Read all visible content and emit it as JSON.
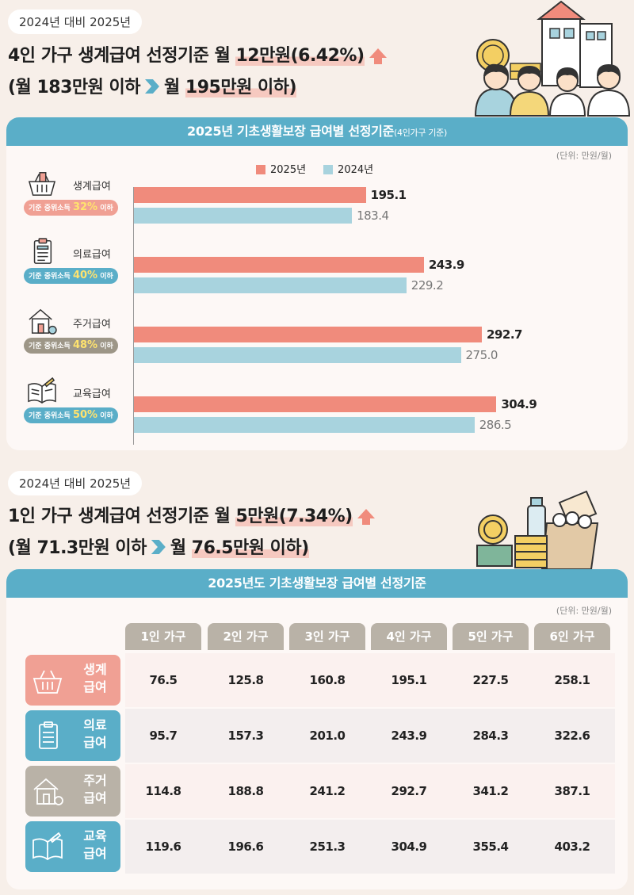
{
  "top": {
    "tag": "2024년 대비 2025년",
    "line1_pre": "4인 가구 생계급여 선정기준 월 ",
    "line1_hl": "12만원(6.42%)",
    "line2_a": "(월 183만원 이하",
    "line2_b": "월 ",
    "line2_hl": "195만원 이하)"
  },
  "chart_card": {
    "title": "2025년 기초생활보장 급여별 선정기준",
    "title_small": "(4인가구 기준)",
    "unit": "(단위: 만원/월)"
  },
  "categories": [
    {
      "name": "생계급여",
      "badge_pre": "기준 중위소득 ",
      "badge_pct": "32%",
      "badge_post": " 이하",
      "icon": "shopping-basket-icon",
      "color": "#f0a094"
    },
    {
      "name": "의료급여",
      "badge_pre": "기준 중위소득 ",
      "badge_pct": "40%",
      "badge_post": " 이하",
      "icon": "clipboard-icon",
      "color": "#5aaec8"
    },
    {
      "name": "주거급여",
      "badge_pre": "기준 중위소득 ",
      "badge_pct": "48%",
      "badge_post": " 이하",
      "icon": "house-icon",
      "color": "#9d9687"
    },
    {
      "name": "교육급여",
      "badge_pre": "기준 중위소득 ",
      "badge_pct": "50%",
      "badge_post": " 이하",
      "icon": "book-icon",
      "color": "#5aaec8"
    }
  ],
  "chart_data": {
    "type": "bar",
    "orientation": "horizontal",
    "categories": [
      "생계급여",
      "의료급여",
      "주거급여",
      "교육급여"
    ],
    "series": [
      {
        "name": "2025년",
        "values": [
          195.1,
          243.9,
          292.7,
          304.9
        ],
        "color": "#f08b7c"
      },
      {
        "name": "2024년",
        "values": [
          183.4,
          229.2,
          275.0,
          286.5
        ],
        "color": "#a8d3de"
      }
    ],
    "value_labels": [
      [
        "195.1",
        "243.9",
        "292.7",
        "304.9"
      ],
      [
        "183.4",
        "229.2",
        "275.0",
        "286.5"
      ]
    ],
    "xlim": [
      0,
      340
    ],
    "legend": "top-center",
    "grid": false
  },
  "bottom": {
    "tag": "2024년 대비 2025년",
    "line1_pre": "1인 가구 생계급여 선정기준 월 ",
    "line1_hl": "5만원(7.34%)",
    "line2_a": "(월 71.3만원 이하",
    "line2_b": "월 ",
    "line2_hl": "76.5만원 이하)"
  },
  "table_card": {
    "title": "2025년도 기초생활보장 급여별 선정기준",
    "unit": "(단위: 만원/월)",
    "columns": [
      "1인 가구",
      "2인 가구",
      "3인 가구",
      "4인 가구",
      "5인 가구",
      "6인 가구"
    ],
    "rows": [
      {
        "label1": "생계",
        "label2": "급여",
        "icon": "shopping-basket-icon",
        "color": "#f0a094",
        "values": [
          "76.5",
          "125.8",
          "160.8",
          "195.1",
          "227.5",
          "258.1"
        ]
      },
      {
        "label1": "의료",
        "label2": "급여",
        "icon": "clipboard-icon",
        "color": "#5aaec8",
        "values": [
          "95.7",
          "157.3",
          "201.0",
          "243.9",
          "284.3",
          "322.6"
        ]
      },
      {
        "label1": "주거",
        "label2": "급여",
        "icon": "house-icon",
        "color": "#b9b2a7",
        "values": [
          "114.8",
          "188.8",
          "241.2",
          "292.7",
          "341.2",
          "387.1"
        ]
      },
      {
        "label1": "교육",
        "label2": "급여",
        "icon": "book-icon",
        "color": "#5aaec8",
        "values": [
          "119.6",
          "196.6",
          "251.3",
          "304.9",
          "355.4",
          "403.2"
        ]
      }
    ]
  }
}
